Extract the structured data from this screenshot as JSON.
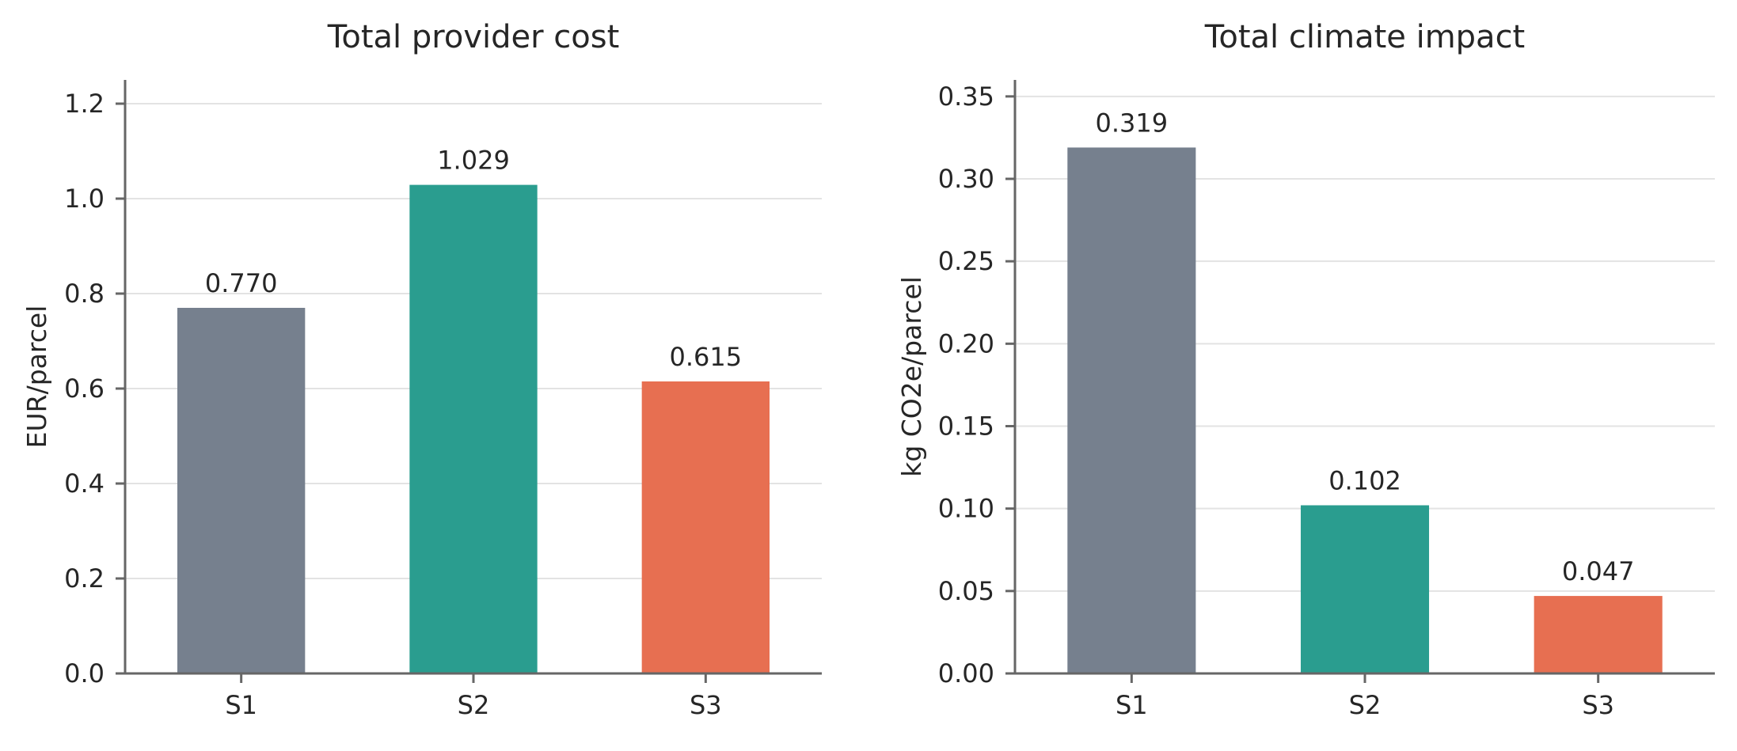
{
  "chart_data": [
    {
      "type": "bar",
      "title": "Total provider cost",
      "xlabel": "",
      "ylabel": "EUR/parcel",
      "categories": [
        "S1",
        "S2",
        "S3"
      ],
      "values": [
        0.77,
        1.029,
        0.615
      ],
      "value_labels": [
        "0.770",
        "1.029",
        "0.615"
      ],
      "colors": [
        "#76808e",
        "#2a9d8f",
        "#e76f51"
      ],
      "ylim": [
        0,
        1.25
      ],
      "yticks": [
        0.0,
        0.2,
        0.4,
        0.6,
        0.8,
        1.0,
        1.2
      ],
      "ytick_labels": [
        "0.0",
        "0.2",
        "0.4",
        "0.6",
        "0.8",
        "1.0",
        "1.2"
      ],
      "grid": "y",
      "legend": "none"
    },
    {
      "type": "bar",
      "title": "Total climate impact",
      "xlabel": "",
      "ylabel": "kg CO2e/parcel",
      "categories": [
        "S1",
        "S2",
        "S3"
      ],
      "values": [
        0.319,
        0.102,
        0.047
      ],
      "value_labels": [
        "0.319",
        "0.102",
        "0.047"
      ],
      "colors": [
        "#76808e",
        "#2a9d8f",
        "#e76f51"
      ],
      "ylim": [
        0,
        0.36
      ],
      "yticks": [
        0.0,
        0.05,
        0.1,
        0.15,
        0.2,
        0.25,
        0.3,
        0.35
      ],
      "ytick_labels": [
        "0.00",
        "0.05",
        "0.10",
        "0.15",
        "0.20",
        "0.25",
        "0.30",
        "0.35"
      ],
      "grid": "y",
      "legend": "none"
    }
  ]
}
